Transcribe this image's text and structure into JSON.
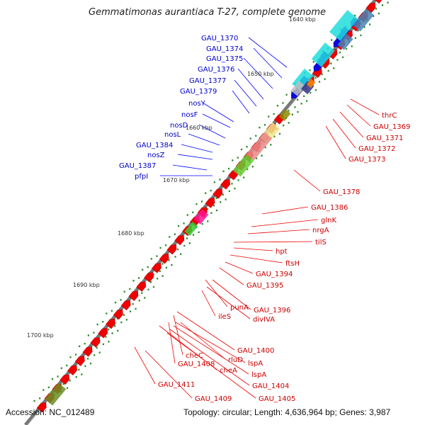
{
  "title": "Gemmatimonas aurantiaca T-27, complete genome",
  "accession": "Accession: NC_012489",
  "summary": "Topology: circular; Length: 4,636,964 bp; Genes: 3,987",
  "ticks": [
    "1640 kbp",
    "1650 kbp",
    "1660 kbp",
    "1670 kbp",
    "1680 kbp",
    "1690 kbp",
    "1700 kbp"
  ],
  "left_labels": [
    "GAU_1370",
    "GAU_1374",
    "GAU_1375",
    "GAU_1376",
    "GAU_1377",
    "GAU_1379",
    "nosY",
    "nosF",
    "nosD",
    "nosL",
    "GAU_1384",
    "nosZ",
    "GAU_1387",
    "pfpI"
  ],
  "right_labels": [
    "thrC",
    "GAU_1369",
    "GAU_1371",
    "GAU_1372",
    "GAU_1373",
    "GAU_1378",
    "GAU_1386",
    "glnK",
    "nrgA",
    "tilS",
    "hpt",
    "ftsH",
    "GAU_1394",
    "GAU_1395",
    "punA",
    "GAU_1396",
    "ileS",
    "divIVA",
    "GAU_1400",
    "cheC",
    "rluD",
    "GAU_1408",
    "lspA",
    "cheA",
    "lspA",
    "GAU_1404",
    "GAU_1411",
    "GAU_1405",
    "GAU_1409"
  ],
  "colors": {
    "forward": "#ff0000",
    "reverse": "#0000ff",
    "backbone": "#808080",
    "tick": "#2e8b2e",
    "dots": "#2e8b2e"
  }
}
